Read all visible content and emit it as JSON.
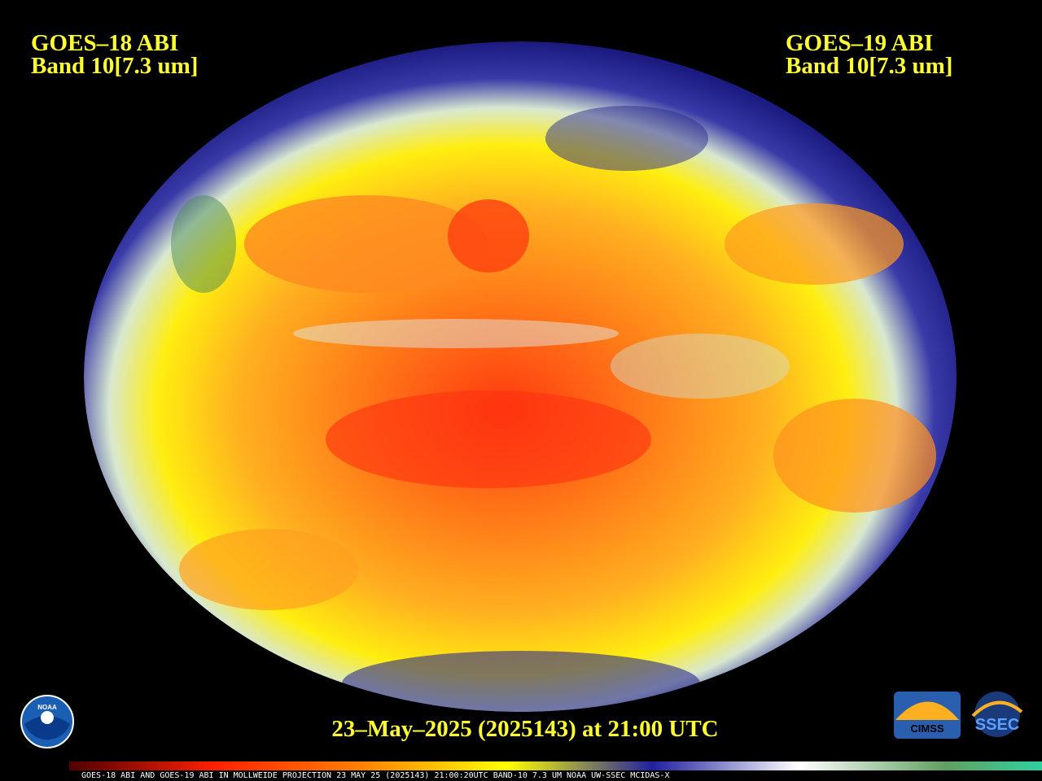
{
  "header": {
    "left": {
      "line1": "GOES–18 ABI",
      "line2": "Band 10[7.3 um]"
    },
    "right": {
      "line1": "GOES–19 ABI",
      "line2": "Band 10[7.3 um]"
    }
  },
  "timestamp": "23–May–2025 (2025143) at 21:00 UTC",
  "footer_strip": "GOES-18 ABI AND GOES-19 ABI IN MOLLWEIDE PROJECTION 23 MAY 25 (2025143) 21:00:20UTC BAND-10 7.3 UM NOAA UW-SSEC MCIDAS-X",
  "logos": {
    "noaa": "NOAA",
    "cimss": "CIMSS",
    "ssec": "SSEC"
  }
}
